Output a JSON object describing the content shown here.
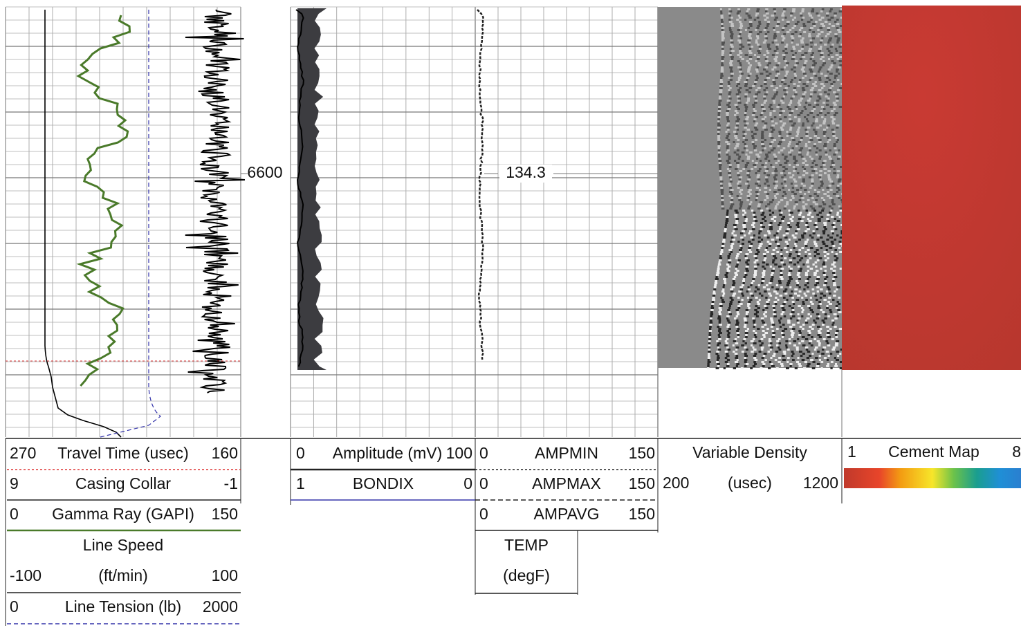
{
  "depth_label": "6600",
  "depth_value_label": "134.3",
  "tracks": [
    {
      "curves": [
        {
          "left": "270",
          "name": "Travel Time (usec)",
          "right": "160"
        },
        {
          "left": "9",
          "name": "Casing Collar",
          "right": "-1"
        },
        {
          "left": "0",
          "name": "Gamma Ray (GAPI)",
          "right": "150"
        },
        {
          "name": "Line Speed",
          "left": "-100",
          "unit": "(ft/min)",
          "right": "100"
        },
        {
          "left": "0",
          "name": "Line Tension (lb)",
          "right": "2000"
        }
      ]
    },
    {
      "curves": [
        {
          "left": "0",
          "name": "Amplitude (mV)",
          "right": "100"
        },
        {
          "left": "1",
          "name": "BONDIX",
          "right": "0"
        }
      ]
    },
    {
      "curves": [
        {
          "left": "0",
          "name": "AMPMIN",
          "right": "150"
        },
        {
          "left": "0",
          "name": "AMPMAX",
          "right": "150"
        },
        {
          "left": "0",
          "name": "AMPAVG",
          "right": "150"
        },
        {
          "name": "TEMP",
          "unit": "(degF)"
        }
      ]
    },
    {
      "curves": [
        {
          "name": "Variable Density",
          "left": "200",
          "unit": "(usec)",
          "right": "1200"
        }
      ]
    },
    {
      "curves": [
        {
          "left": "1",
          "name": "Cement Map",
          "right": "8"
        }
      ]
    }
  ]
}
